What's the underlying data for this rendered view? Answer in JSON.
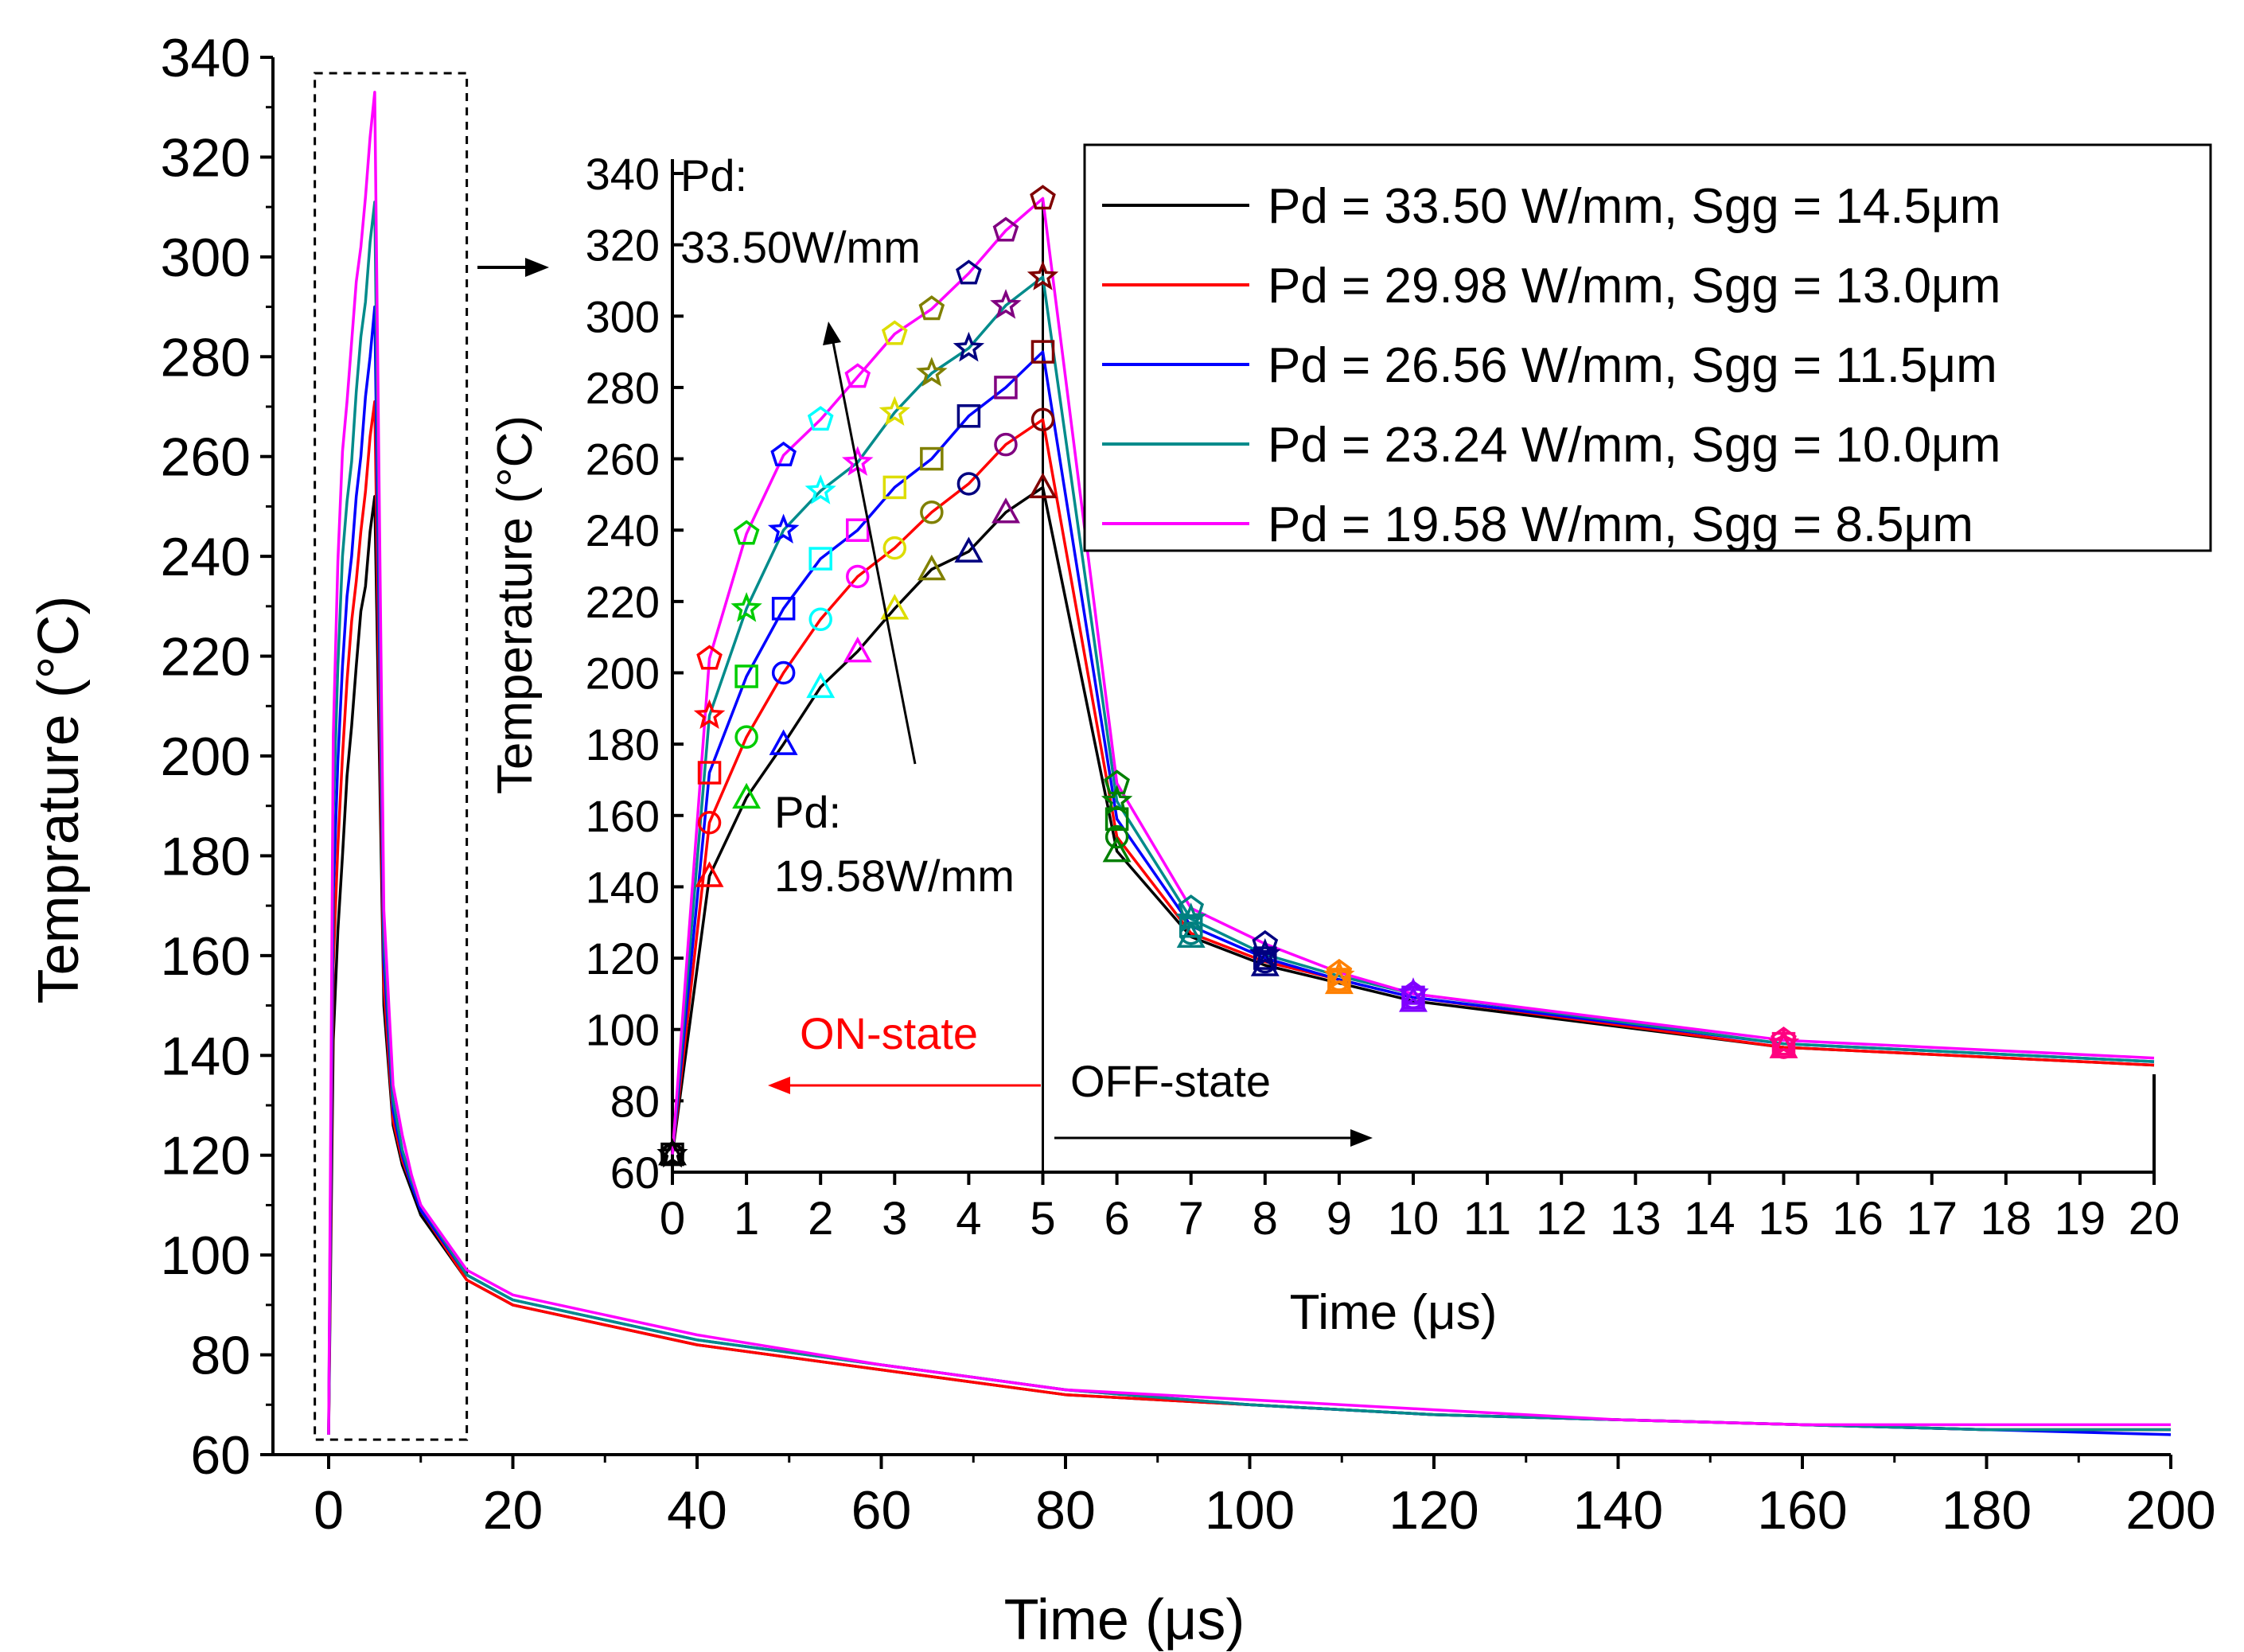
{
  "chart_data": [
    {
      "id": "main",
      "type": "line",
      "xlabel": "Time (μs)",
      "ylabel": "Temprature (°C)",
      "xlim": [
        0,
        200
      ],
      "ylim": [
        60,
        340
      ],
      "xticks": [
        "0",
        "20",
        "40",
        "60",
        "80",
        "100",
        "120",
        "140",
        "160",
        "180",
        "200"
      ],
      "yticks": [
        "60",
        "80",
        "100",
        "120",
        "140",
        "160",
        "180",
        "200",
        "220",
        "240",
        "260",
        "280",
        "300",
        "320",
        "340"
      ],
      "zoom_box": {
        "x_range": [
          -1.5,
          15
        ],
        "y_range": [
          63,
          340
        ]
      },
      "series": [
        {
          "name": "Pd = 33.50 W/mm, Sgg = 14.5μm",
          "color": "#000000",
          "x": [
            0,
            0.5,
            1,
            1.5,
            2,
            2.5,
            3,
            3.5,
            4,
            4.5,
            5,
            6,
            7,
            8,
            9,
            10,
            15,
            20,
            40,
            60,
            80,
            100,
            120,
            140,
            160,
            180,
            200
          ],
          "y": [
            64,
            143,
            165,
            180,
            196,
            206,
            218,
            229,
            234,
            245,
            252,
            150,
            126,
            118,
            113,
            108,
            95,
            90,
            82,
            77,
            72,
            70,
            68,
            67,
            66,
            65,
            65
          ]
        },
        {
          "name": "Pd = 29.98 W/mm, Sgg = 13.0μm",
          "color": "#ff0000",
          "x": [
            0,
            0.5,
            1,
            1.5,
            2,
            2.5,
            3,
            3.5,
            4,
            4.5,
            5,
            6,
            7,
            8,
            9,
            10,
            15,
            20,
            40,
            60,
            80,
            100,
            120,
            140,
            160,
            180,
            200
          ],
          "y": [
            64,
            158,
            182,
            200,
            215,
            227,
            235,
            245,
            253,
            264,
            271,
            154,
            127,
            119,
            114,
            109,
            95,
            90,
            82,
            77,
            72,
            70,
            68,
            67,
            66,
            65,
            65
          ]
        },
        {
          "name": "Pd = 26.56 W/mm, Sgg = 11.5μm",
          "color": "#0000ff",
          "x": [
            0,
            0.5,
            1,
            1.5,
            2,
            2.5,
            3,
            3.5,
            4,
            4.5,
            5,
            6,
            7,
            8,
            9,
            10,
            15,
            20,
            40,
            60,
            80,
            100,
            120,
            140,
            160,
            180,
            200
          ],
          "y": [
            64,
            172,
            199,
            218,
            232,
            240,
            252,
            260,
            272,
            280,
            290,
            159,
            129,
            120,
            114,
            109,
            96,
            91,
            83,
            78,
            73,
            70,
            68,
            67,
            66,
            65,
            64
          ]
        },
        {
          "name": "Pd = 23.24 W/mm, Sgg = 10.0μm",
          "color": "#008b8b",
          "x": [
            0,
            0.5,
            1,
            1.5,
            2,
            2.5,
            3,
            3.5,
            4,
            4.5,
            5,
            6,
            7,
            8,
            9,
            10,
            15,
            20,
            40,
            60,
            80,
            100,
            120,
            140,
            160,
            180,
            200
          ],
          "y": [
            64,
            188,
            218,
            240,
            251,
            259,
            273,
            284,
            291,
            303,
            311,
            164,
            131,
            121,
            115,
            110,
            96,
            91,
            83,
            78,
            73,
            70,
            68,
            67,
            66,
            65,
            65
          ]
        },
        {
          "name": "Pd = 19.58 W/mm, Sgg = 8.5μm",
          "color": "#ff00ff",
          "x": [
            0,
            0.5,
            1,
            1.5,
            2,
            2.5,
            3,
            3.5,
            4,
            4.5,
            5,
            6,
            7,
            8,
            9,
            10,
            15,
            20,
            40,
            60,
            80,
            100,
            120,
            140,
            160,
            180,
            200
          ],
          "y": [
            64,
            204,
            239,
            261,
            271,
            283,
            295,
            302,
            312,
            324,
            333,
            169,
            134,
            124,
            116,
            110,
            97,
            92,
            84,
            78,
            73,
            71,
            69,
            67,
            66,
            66,
            66
          ]
        }
      ]
    },
    {
      "id": "inset",
      "type": "line",
      "xlabel": "Time (μs)",
      "ylabel": "Temperature (°C)",
      "xlim": [
        0,
        20
      ],
      "ylim": [
        60,
        340
      ],
      "xticks": [
        "0",
        "1",
        "2",
        "3",
        "4",
        "5",
        "6",
        "7",
        "8",
        "9",
        "10",
        "11",
        "12",
        "13",
        "14",
        "15",
        "16",
        "17",
        "18",
        "19",
        "20"
      ],
      "yticks": [
        "60",
        "80",
        "100",
        "120",
        "140",
        "160",
        "180",
        "200",
        "220",
        "240",
        "260",
        "280",
        "300",
        "320",
        "340"
      ],
      "marker_x": [
        0,
        0.5,
        1,
        1.5,
        2,
        2.5,
        3,
        3.5,
        4,
        4.5,
        5,
        6,
        7,
        8,
        9,
        10,
        15
      ],
      "marker_colors": [
        "#000000",
        "#ff0000",
        "#00cc00",
        "#0000ff",
        "#00ffff",
        "#ff00ff",
        "#dddd00",
        "#808000",
        "#000080",
        "#800080",
        "#800000",
        "#008000",
        "#008080",
        "#000080",
        "#ff8000",
        "#8000ff",
        "#ff0080"
      ],
      "series": [
        {
          "name": "Pd = 33.50 W/mm, Sgg = 14.5μm",
          "color": "#000000",
          "marker": "triangle",
          "x": [
            0,
            0.5,
            1,
            1.5,
            2,
            2.5,
            3,
            3.5,
            4,
            4.5,
            5,
            6,
            7,
            8,
            9,
            10,
            15,
            20
          ],
          "y": [
            65,
            143,
            165,
            180,
            196,
            206,
            218,
            229,
            234,
            245,
            252,
            150,
            126,
            118,
            113,
            108,
            95,
            90
          ]
        },
        {
          "name": "Pd = 29.98 W/mm, Sgg = 13.0μm",
          "color": "#ff0000",
          "marker": "circle",
          "x": [
            0,
            0.5,
            1,
            1.5,
            2,
            2.5,
            3,
            3.5,
            4,
            4.5,
            5,
            6,
            7,
            8,
            9,
            10,
            15,
            20
          ],
          "y": [
            65,
            158,
            182,
            200,
            215,
            227,
            235,
            245,
            253,
            264,
            271,
            154,
            127,
            119,
            114,
            109,
            95,
            90
          ]
        },
        {
          "name": "Pd = 26.56 W/mm, Sgg = 11.5μm",
          "color": "#0000ff",
          "marker": "square",
          "x": [
            0,
            0.5,
            1,
            1.5,
            2,
            2.5,
            3,
            3.5,
            4,
            4.5,
            5,
            6,
            7,
            8,
            9,
            10,
            15,
            20
          ],
          "y": [
            65,
            172,
            199,
            218,
            232,
            240,
            252,
            260,
            272,
            280,
            290,
            159,
            129,
            120,
            114,
            109,
            96,
            91
          ]
        },
        {
          "name": "Pd = 23.24 W/mm, Sgg = 10.0μm",
          "color": "#008b8b",
          "marker": "star",
          "x": [
            0,
            0.5,
            1,
            1.5,
            2,
            2.5,
            3,
            3.5,
            4,
            4.5,
            5,
            6,
            7,
            8,
            9,
            10,
            15,
            20
          ],
          "y": [
            65,
            188,
            218,
            240,
            251,
            259,
            273,
            284,
            291,
            303,
            311,
            164,
            131,
            121,
            115,
            110,
            96,
            91
          ]
        },
        {
          "name": "Pd = 19.58 W/mm, Sgg = 8.5μm",
          "color": "#ff00ff",
          "marker": "pentagon",
          "x": [
            0,
            0.5,
            1,
            1.5,
            2,
            2.5,
            3,
            3.5,
            4,
            4.5,
            5,
            6,
            7,
            8,
            9,
            10,
            15,
            20
          ],
          "y": [
            65,
            204,
            239,
            261,
            271,
            283,
            295,
            302,
            312,
            324,
            333,
            169,
            134,
            124,
            116,
            110,
            97,
            92
          ]
        }
      ],
      "annotations": {
        "pd_high_line1": "Pd:",
        "pd_high_line2": "33.50W/mm",
        "pd_low_line1": "Pd:",
        "pd_low_line2": "19.58W/mm",
        "on_state": "ON-state",
        "off_state": "OFF-state",
        "on_state_color": "#ff0000",
        "off_state_color": "#000000"
      }
    }
  ]
}
